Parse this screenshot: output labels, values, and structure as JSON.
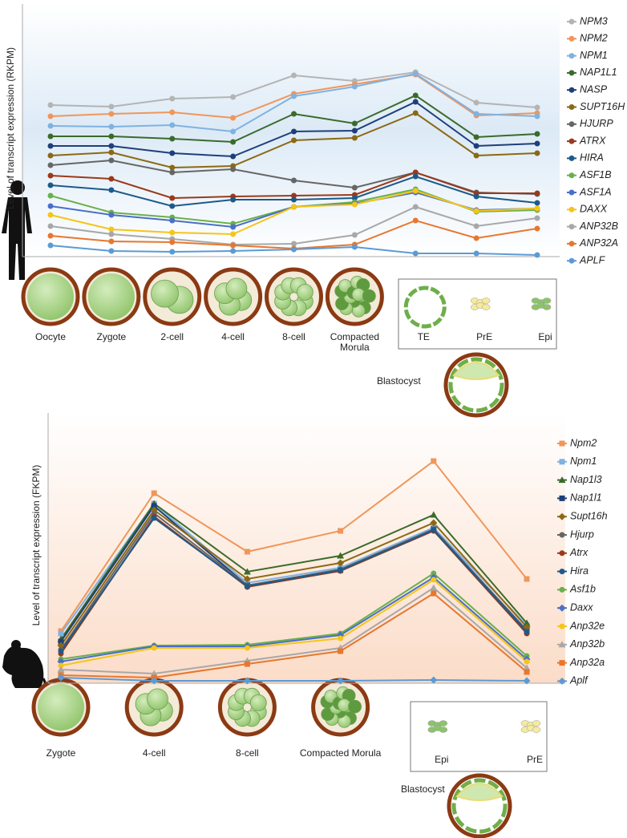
{
  "chart_data": [
    {
      "type": "line",
      "y_label": "Level of transcript expression (RKPM)",
      "annotation": "Blastocyst",
      "marker": "circle",
      "categories": [
        "Oocyte",
        "Zygote",
        "2-cell",
        "4-cell",
        "8-cell",
        "Compacted Morula",
        "TE",
        "PrE",
        "Epi"
      ],
      "ylim": [
        0,
        315
      ],
      "series": [
        {
          "name": "NPM3",
          "color": "#b4b4b4",
          "values": [
            189,
            187,
            197,
            199,
            226,
            219,
            230,
            192,
            186
          ]
        },
        {
          "name": "NPM2",
          "color": "#f0965a",
          "values": [
            175,
            178,
            180,
            173,
            203,
            215,
            227,
            176,
            179
          ]
        },
        {
          "name": "NPM1",
          "color": "#7fb2e2",
          "values": [
            163,
            162,
            164,
            156,
            200,
            212,
            228,
            178,
            175
          ]
        },
        {
          "name": "NAP1L1",
          "color": "#3a6b2a",
          "values": [
            150,
            150,
            147,
            143,
            178,
            166,
            201,
            149,
            153
          ]
        },
        {
          "name": "NASP",
          "color": "#1f3f7a",
          "values": [
            138,
            138,
            129,
            125,
            156,
            157,
            193,
            138,
            141
          ]
        },
        {
          "name": "SUPT16H",
          "color": "#8b6914",
          "values": [
            126,
            130,
            111,
            113,
            145,
            148,
            179,
            126,
            129
          ]
        },
        {
          "name": "HJURP",
          "color": "#666666",
          "values": [
            114,
            120,
            105,
            109,
            95,
            86,
            105,
            80,
            78
          ]
        },
        {
          "name": "ATRX",
          "color": "#9a3a1a",
          "values": [
            101,
            97,
            73,
            75,
            76,
            77,
            105,
            79,
            79
          ]
        },
        {
          "name": "HIRA",
          "color": "#1d5a8a",
          "values": [
            89,
            83,
            63,
            71,
            71,
            73,
            100,
            75,
            67
          ]
        },
        {
          "name": "ASF1B",
          "color": "#6ab04c",
          "values": [
            76,
            55,
            49,
            41,
            62,
            68,
            84,
            56,
            58
          ]
        },
        {
          "name": "ASF1A",
          "color": "#4a6fc8",
          "values": [
            63,
            52,
            45,
            37,
            62,
            66,
            80,
            58,
            60
          ]
        },
        {
          "name": "DAXX",
          "color": "#f5c518",
          "values": [
            52,
            34,
            30,
            28,
            62,
            65,
            82,
            57,
            60
          ]
        },
        {
          "name": "ANP32B",
          "color": "#a8a8a8",
          "values": [
            38,
            28,
            22,
            15,
            16,
            27,
            62,
            38,
            48
          ]
        },
        {
          "name": "ANP32A",
          "color": "#e8772e",
          "values": [
            26,
            19,
            18,
            14,
            10,
            15,
            45,
            23,
            35
          ]
        },
        {
          "name": "APLF",
          "color": "#5b9bd5",
          "values": [
            14,
            7,
            6,
            7,
            9,
            12,
            4,
            4,
            2
          ]
        }
      ]
    },
    {
      "type": "line",
      "y_label": "Level of transcript expression (FKPM)",
      "annotation": "Blastocyst",
      "categories": [
        "Zygote",
        "4-cell",
        "8-cell",
        "Compacted Morula",
        "Epi",
        "PrE"
      ],
      "ylim": [
        0,
        337
      ],
      "series": [
        {
          "name": "Npm2",
          "color": "#f0965a",
          "marker": "square",
          "values": [
            65,
            237,
            164,
            190,
            277,
            130
          ]
        },
        {
          "name": "Npm1",
          "color": "#7fb2e2",
          "marker": "square",
          "values": [
            62,
            224,
            125,
            144,
            194,
            72
          ]
        },
        {
          "name": "Nap1l3",
          "color": "#3a6b2a",
          "marker": "triangle",
          "values": [
            55,
            224,
            139,
            159,
            210,
            75
          ]
        },
        {
          "name": "Nap1l1",
          "color": "#1f3f7a",
          "marker": "square",
          "values": [
            52,
            221,
            122,
            141,
            192,
            66
          ]
        },
        {
          "name": "Supt16h",
          "color": "#8b6914",
          "marker": "diamond",
          "values": [
            47,
            216,
            130,
            150,
            200,
            70
          ]
        },
        {
          "name": "Hjurp",
          "color": "#666666",
          "marker": "circle",
          "values": [
            42,
            212,
            122,
            142,
            192,
            65
          ]
        },
        {
          "name": "Atrx",
          "color": "#9a3a1a",
          "marker": "circle",
          "values": [
            37,
            208,
            120,
            140,
            190,
            62
          ]
        },
        {
          "name": "Hira",
          "color": "#1d5a8a",
          "marker": "circle",
          "values": [
            40,
            206,
            121,
            141,
            191,
            64
          ]
        },
        {
          "name": "Asf1b",
          "color": "#6ab04c",
          "marker": "circle",
          "values": [
            30,
            47,
            48,
            62,
            137,
            34
          ]
        },
        {
          "name": "Daxx",
          "color": "#4a6fc8",
          "marker": "diamond",
          "values": [
            27,
            46,
            46,
            60,
            132,
            30
          ]
        },
        {
          "name": "Anp32e",
          "color": "#f5c518",
          "marker": "circle",
          "values": [
            22,
            44,
            44,
            56,
            129,
            27
          ]
        },
        {
          "name": "Anp32b",
          "color": "#a8a8a8",
          "marker": "triangle",
          "values": [
            17,
            12,
            28,
            44,
            119,
            19
          ]
        },
        {
          "name": "Anp32a",
          "color": "#e8772e",
          "marker": "square",
          "values": [
            10,
            7,
            24,
            40,
            112,
            14
          ]
        },
        {
          "name": "Aplf",
          "color": "#5b9bd5",
          "marker": "diamond",
          "values": [
            7,
            3,
            3,
            3,
            4,
            3
          ]
        }
      ]
    }
  ]
}
